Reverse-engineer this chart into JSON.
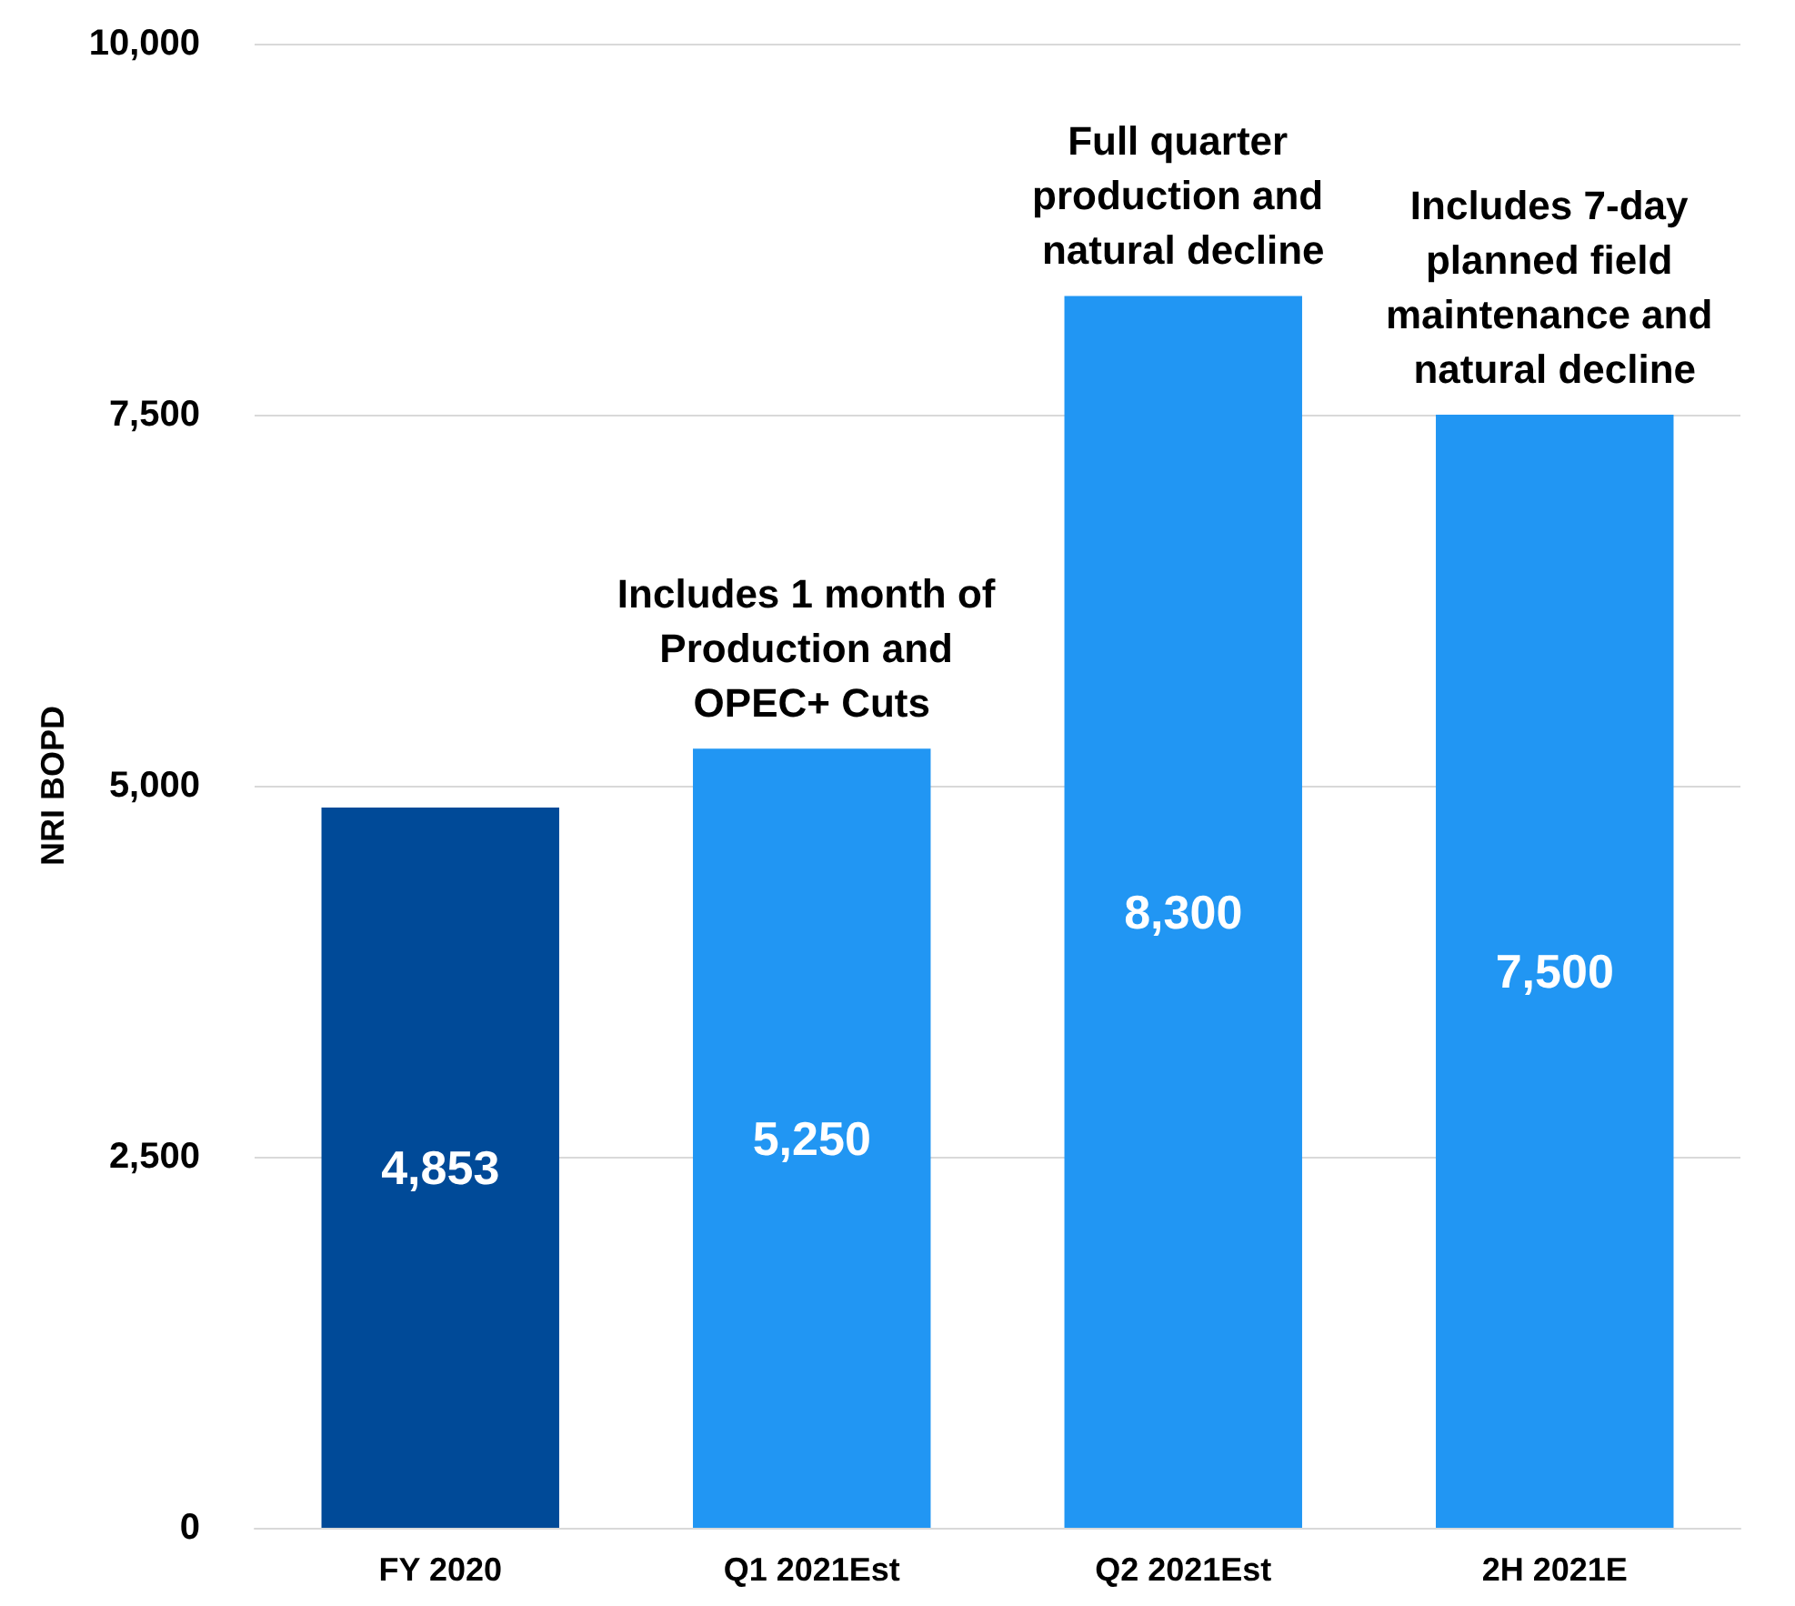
{
  "chart_data": {
    "type": "bar",
    "ylabel": "NRI BOPD",
    "categories": [
      "FY 2020",
      "Q1 2021Est",
      "Q2 2021Est",
      "2H 2021E"
    ],
    "values": [
      4853,
      5250,
      8300,
      7500
    ],
    "colors": [
      "#004a98",
      "#2196f3",
      "#2196f3",
      "#2196f3"
    ],
    "value_labels": [
      "4,853",
      "5,250",
      "8,300",
      "7,500"
    ],
    "ylim": [
      0,
      10000
    ],
    "yticks": [
      {
        "value": 0,
        "label": "0"
      },
      {
        "value": 2500,
        "label": "2,500"
      },
      {
        "value": 5000,
        "label": "5,000"
      },
      {
        "value": 7500,
        "label": "7,500"
      },
      {
        "value": 10000,
        "label": "10,000"
      }
    ],
    "grid": "y",
    "annotations": [
      {
        "text": "Includes 1 month of Production and OPEC+ Cuts",
        "x": "Q1 2021Est",
        "y": 5250
      },
      {
        "text": "Full quarter production and natural decline",
        "x": "Q2 2021Est",
        "y": 8300
      },
      {
        "text": "Includes 7-day planned field maintenance and natural decline",
        "x": "2H 2021E",
        "y": 7500
      }
    ]
  }
}
